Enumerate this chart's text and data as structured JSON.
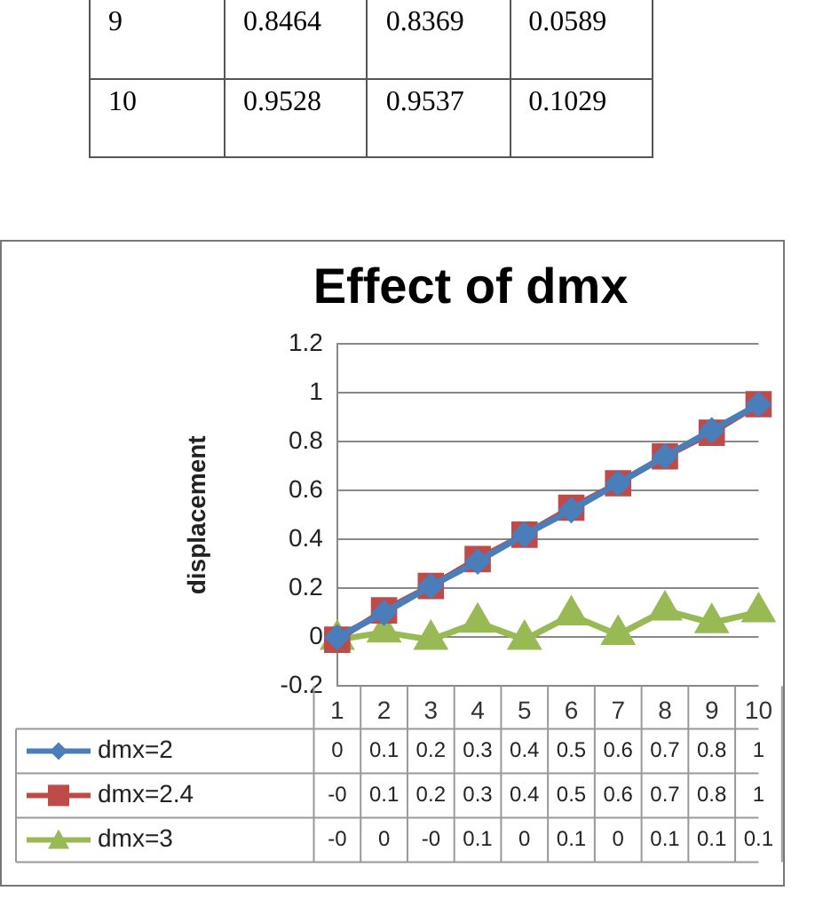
{
  "chart_data": [
    {
      "type": "other",
      "annotations": [
        "9",
        "0.8464",
        "0.8369",
        "0.0589",
        "10",
        "0.9528",
        "0.9537",
        "0.1029"
      ]
    },
    {
      "type": "line",
      "title": "Effect of dmx",
      "ylabel": "displacement",
      "categories": [
        "1",
        "2",
        "3",
        "4",
        "5",
        "6",
        "7",
        "8",
        "9",
        "10"
      ],
      "series": [
        {
          "name": "dmx=2",
          "color": "#4a7ebb",
          "marker": "diamond",
          "values": [
            0,
            0.1,
            0.21,
            0.31,
            0.42,
            0.52,
            0.63,
            0.74,
            0.8464,
            0.9528
          ],
          "value_labels": [
            "0",
            "0.1",
            "0.2",
            "0.3",
            "0.4",
            "0.5",
            "0.6",
            "0.7",
            "0.8",
            "1"
          ]
        },
        {
          "name": "dmx=2.4",
          "color": "#be4b48",
          "marker": "square",
          "values": [
            -0.01,
            0.11,
            0.21,
            0.32,
            0.42,
            0.53,
            0.63,
            0.74,
            0.8369,
            0.9537
          ],
          "value_labels": [
            "-0",
            "0.1",
            "0.2",
            "0.3",
            "0.4",
            "0.5",
            "0.6",
            "0.7",
            "0.8",
            "1"
          ]
        },
        {
          "name": "dmx=3",
          "color": "#98b954",
          "marker": "triangle",
          "values": [
            -0.01,
            0.02,
            -0.01,
            0.06,
            -0.01,
            0.09,
            0.01,
            0.11,
            0.0589,
            0.1029
          ],
          "value_labels": [
            "-0",
            "0",
            "-0",
            "0.1",
            "0",
            "0.1",
            "0",
            "0.1",
            "0.1",
            "0.1"
          ]
        }
      ],
      "ylim": [
        -0.2,
        1.2
      ],
      "yticks": [
        -0.2,
        0,
        0.2,
        0.4,
        0.6,
        0.8,
        1,
        1.2
      ],
      "grid": "y",
      "legend": "bottom"
    }
  ]
}
